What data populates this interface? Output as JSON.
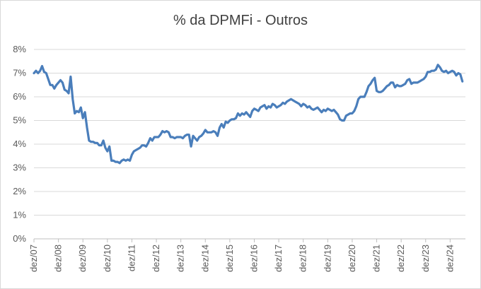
{
  "chart_data": {
    "type": "line",
    "title": "% da DPMFi - Outros",
    "xlabel": "",
    "ylabel": "",
    "ylim": [
      0,
      8
    ],
    "y_ticks": [
      "0%",
      "1%",
      "2%",
      "3%",
      "4%",
      "5%",
      "6%",
      "7%",
      "8%"
    ],
    "x_ticks": [
      "dez/07",
      "dez/08",
      "dez/09",
      "dez/10",
      "dez/11",
      "dez/12",
      "dez/13",
      "dez/14",
      "dez/15",
      "dez/16",
      "dez/17",
      "dez/18",
      "dez/19",
      "dez/20",
      "dez/21",
      "dez/22",
      "dez/23",
      "dez/24"
    ],
    "grid": true,
    "legend": "none",
    "line_color": "#4a7ebb",
    "series": [
      {
        "x": [
          "dez/07",
          "jan/08",
          "fev/08",
          "mar/08",
          "abr/08",
          "mai/08",
          "jun/08",
          "jul/08",
          "ago/08",
          "set/08",
          "out/08",
          "nov/08",
          "dez/08",
          "jan/09",
          "fev/09",
          "mar/09",
          "abr/09",
          "mai/09",
          "jun/09",
          "jul/09",
          "ago/09",
          "set/09",
          "out/09",
          "nov/09",
          "dez/09",
          "jan/10",
          "fev/10",
          "mar/10",
          "abr/10",
          "mai/10",
          "jun/10",
          "jul/10",
          "ago/10",
          "set/10",
          "out/10",
          "nov/10",
          "dez/10",
          "jan/11",
          "fev/11",
          "mar/11",
          "abr/11",
          "mai/11",
          "jun/11",
          "jul/11",
          "ago/11",
          "set/11",
          "out/11",
          "nov/11",
          "dez/11",
          "jan/12",
          "fev/12",
          "mar/12",
          "abr/12",
          "mai/12",
          "jun/12",
          "jul/12",
          "ago/12",
          "set/12",
          "out/12",
          "nov/12",
          "dez/12",
          "jan/13",
          "fev/13",
          "mar/13",
          "abr/13",
          "mai/13",
          "jun/13",
          "jul/13",
          "ago/13",
          "set/13",
          "out/13",
          "nov/13",
          "dez/13",
          "jan/14",
          "fev/14",
          "mar/14",
          "abr/14",
          "mai/14",
          "jun/14",
          "jul/14",
          "ago/14",
          "set/14",
          "out/14",
          "nov/14",
          "dez/14",
          "jan/15",
          "fev/15",
          "mar/15",
          "abr/15",
          "mai/15",
          "jun/15",
          "jul/15",
          "ago/15",
          "set/15",
          "out/15",
          "nov/15",
          "dez/15",
          "jan/16",
          "fev/16",
          "mar/16",
          "abr/16",
          "mai/16",
          "jun/16",
          "jul/16",
          "ago/16",
          "set/16",
          "out/16",
          "nov/16",
          "dez/16",
          "jan/17",
          "fev/17",
          "mar/17",
          "abr/17",
          "mai/17",
          "jun/17",
          "jul/17",
          "ago/17",
          "set/17",
          "out/17",
          "nov/17",
          "dez/17",
          "jan/18",
          "fev/18",
          "mar/18",
          "abr/18",
          "mai/18",
          "jun/18",
          "jul/18",
          "ago/18",
          "set/18",
          "out/18",
          "nov/18",
          "dez/18",
          "jan/19",
          "fev/19",
          "mar/19",
          "abr/19",
          "mai/19",
          "jun/19",
          "jul/19",
          "ago/19",
          "set/19",
          "out/19",
          "nov/19",
          "dez/19",
          "jan/20",
          "fev/20",
          "mar/20",
          "abr/20",
          "mai/20",
          "jun/20",
          "jul/20",
          "ago/20",
          "set/20",
          "out/20",
          "nov/20",
          "dez/20",
          "jan/21",
          "fev/21",
          "mar/21",
          "abr/21",
          "mai/21",
          "jun/21",
          "jul/21",
          "ago/21",
          "set/21",
          "out/21",
          "nov/21",
          "dez/21",
          "jan/22",
          "fev/22",
          "mar/22",
          "abr/22",
          "mai/22",
          "jun/22",
          "jul/22",
          "ago/22",
          "set/22",
          "out/22",
          "nov/22",
          "dez/22",
          "jan/23",
          "fev/23",
          "mar/23",
          "abr/23",
          "mai/23",
          "jun/23",
          "jul/23",
          "ago/23",
          "set/23",
          "out/23",
          "nov/23",
          "dez/23",
          "jan/24",
          "fev/24",
          "mar/24",
          "abr/24",
          "mai/24",
          "jun/24",
          "jul/24",
          "ago/24",
          "set/24",
          "out/24",
          "nov/24",
          "dez/24",
          "jan/25",
          "fev/25",
          "mar/25",
          "abr/25",
          "mai/25",
          "jun/25"
        ],
        "values": [
          7.0,
          7.1,
          7.0,
          7.1,
          7.3,
          7.05,
          7.0,
          6.75,
          6.5,
          6.5,
          6.35,
          6.5,
          6.6,
          6.7,
          6.6,
          6.3,
          6.25,
          6.15,
          6.85,
          5.9,
          5.3,
          5.4,
          5.35,
          5.55,
          5.1,
          5.35,
          4.7,
          4.15,
          4.1,
          4.1,
          4.05,
          4.05,
          3.95,
          3.95,
          4.15,
          3.85,
          3.7,
          3.9,
          3.3,
          3.3,
          3.25,
          3.25,
          3.2,
          3.3,
          3.35,
          3.3,
          3.35,
          3.3,
          3.55,
          3.7,
          3.75,
          3.8,
          3.85,
          3.95,
          3.95,
          3.9,
          4.05,
          4.25,
          4.15,
          4.3,
          4.3,
          4.3,
          4.4,
          4.55,
          4.5,
          4.55,
          4.5,
          4.3,
          4.3,
          4.25,
          4.3,
          4.3,
          4.3,
          4.25,
          4.35,
          4.4,
          4.4,
          3.9,
          4.35,
          4.25,
          4.15,
          4.3,
          4.35,
          4.45,
          4.6,
          4.5,
          4.5,
          4.5,
          4.55,
          4.5,
          4.35,
          4.7,
          4.85,
          4.7,
          4.95,
          4.9,
          5.0,
          5.05,
          5.05,
          5.1,
          5.3,
          5.2,
          5.3,
          5.25,
          5.35,
          5.25,
          5.15,
          5.4,
          5.5,
          5.45,
          5.4,
          5.55,
          5.6,
          5.65,
          5.5,
          5.6,
          5.55,
          5.7,
          5.65,
          5.55,
          5.6,
          5.65,
          5.75,
          5.7,
          5.8,
          5.85,
          5.9,
          5.85,
          5.8,
          5.75,
          5.7,
          5.6,
          5.7,
          5.65,
          5.55,
          5.6,
          5.5,
          5.45,
          5.5,
          5.55,
          5.45,
          5.35,
          5.45,
          5.4,
          5.5,
          5.45,
          5.4,
          5.45,
          5.35,
          5.25,
          5.05,
          5.0,
          5.0,
          5.2,
          5.25,
          5.3,
          5.3,
          5.4,
          5.6,
          5.9,
          6.0,
          6.0,
          6.0,
          6.2,
          6.45,
          6.55,
          6.7,
          6.8,
          6.25,
          6.2,
          6.2,
          6.25,
          6.35,
          6.45,
          6.5,
          6.6,
          6.6,
          6.4,
          6.5,
          6.45,
          6.45,
          6.5,
          6.55,
          6.7,
          6.75,
          6.55,
          6.6,
          6.6,
          6.6,
          6.65,
          6.7,
          6.75,
          6.85,
          7.05,
          7.05,
          7.1,
          7.1,
          7.15,
          7.35,
          7.25,
          7.1,
          7.05,
          7.1,
          7.0,
          7.05,
          7.1,
          7.05,
          6.9,
          7.0,
          6.95,
          6.65
        ]
      }
    ]
  }
}
